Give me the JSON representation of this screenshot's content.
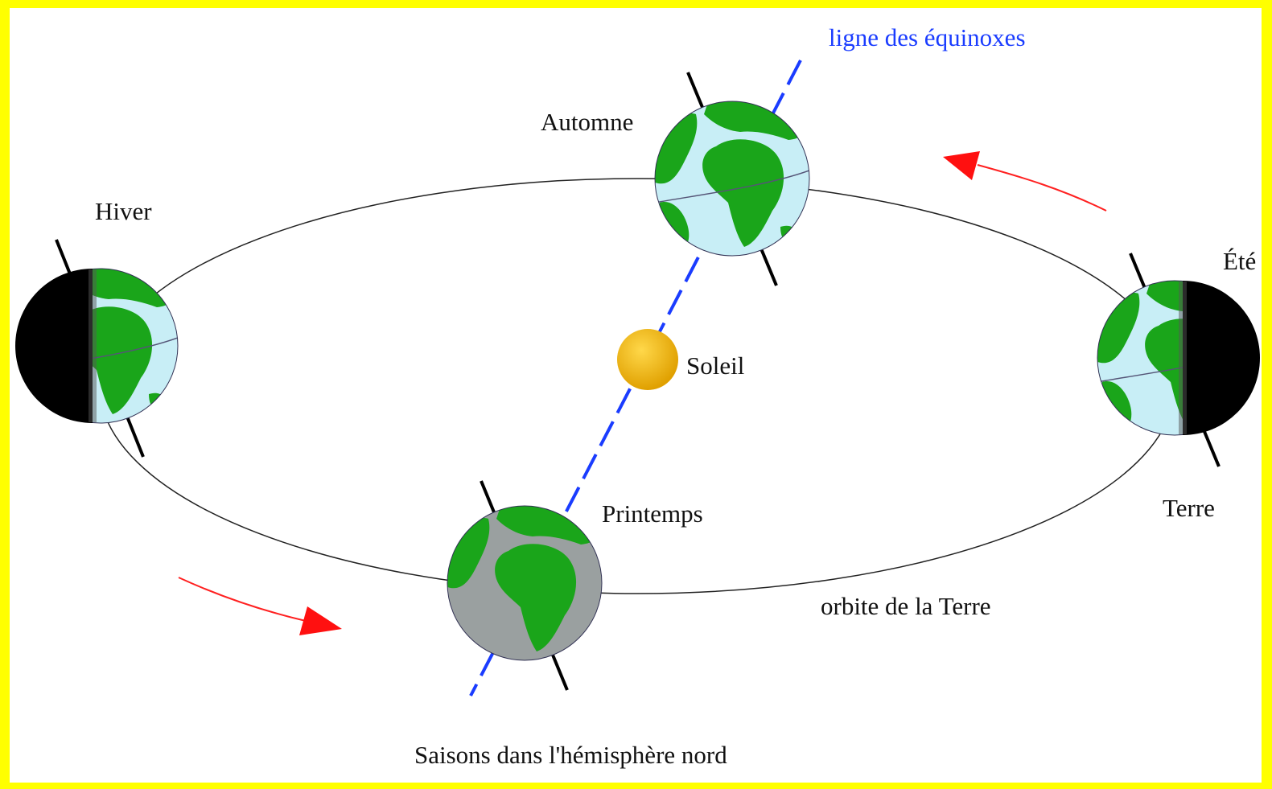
{
  "title": "Saisons dans l'hémisphère nord",
  "labels": {
    "equinox_line": "ligne des équinoxes",
    "autumn": "Automne",
    "winter": "Hiver",
    "summer": "Été",
    "sun": "Soleil",
    "spring": "Printemps",
    "earth": "Terre",
    "orbit": "orbite de la Terre"
  }
}
